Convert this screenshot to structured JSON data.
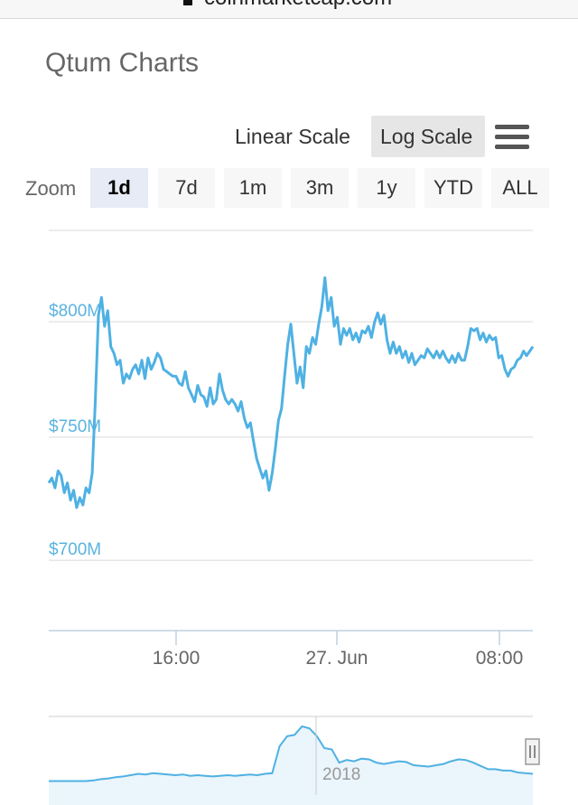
{
  "browser": {
    "url": "coinmarketcap.com"
  },
  "page": {
    "title": "Qtum Charts"
  },
  "controls": {
    "linear_label": "Linear Scale",
    "log_label": "Log Scale",
    "active_scale": "Log Scale",
    "zoom_label": "Zoom",
    "ranges": [
      "1d",
      "7d",
      "1m",
      "3m",
      "1y",
      "YTD",
      "ALL"
    ],
    "active_range": "1d"
  },
  "colors": {
    "line": "#4fb1e3",
    "navigator_fill": "#eaf5fc",
    "grid": "#e6e6e6",
    "active_button": "#e6ebf5"
  },
  "chart_data": {
    "type": "line",
    "title": "Qtum Charts",
    "y_scale": "log",
    "ylim": [
      673,
      842
    ],
    "y_ticks": [
      700,
      750,
      800
    ],
    "y_tick_labels": [
      "$700M",
      "$750M",
      "$800M"
    ],
    "x_ticks": [
      "16:00",
      "27. Jun",
      "08:00"
    ],
    "grid": true,
    "series": [
      {
        "values": [
          731,
          733,
          729,
          736,
          734,
          727,
          731,
          724,
          728,
          721,
          725,
          722,
          729,
          727,
          735,
          765,
          803,
          811,
          798,
          805,
          789,
          786,
          781,
          783,
          773,
          777,
          775,
          779,
          781,
          777,
          783,
          775,
          784,
          779,
          782,
          786,
          784,
          779,
          778,
          777,
          776,
          776,
          773,
          772,
          778,
          771,
          768,
          765,
          772,
          768,
          767,
          763,
          771,
          764,
          766,
          777,
          770,
          766,
          764,
          766,
          764,
          761,
          765,
          758,
          754,
          756,
          748,
          741,
          737,
          733,
          736,
          728,
          735,
          745,
          757,
          762,
          776,
          790,
          799,
          786,
          773,
          780,
          771,
          789,
          786,
          793,
          790,
          799,
          807,
          820,
          805,
          811,
          798,
          802,
          790,
          797,
          794,
          797,
          792,
          795,
          791,
          796,
          795,
          798,
          793,
          800,
          804,
          799,
          803,
          792,
          786,
          791,
          786,
          789,
          784,
          787,
          782,
          786,
          781,
          783,
          785,
          784,
          788,
          786,
          784,
          787,
          784,
          787,
          784,
          782,
          785,
          782,
          786,
          783,
          783,
          789,
          797,
          796,
          797,
          792,
          795,
          791,
          794,
          792,
          793,
          784,
          785,
          779,
          776,
          779,
          780,
          783,
          784,
          787,
          785,
          787,
          789
        ]
      }
    ],
    "navigator": {
      "label": "2018",
      "values": [
        0.02,
        0.02,
        0.02,
        0.02,
        0.02,
        0.02,
        0.03,
        0.05,
        0.06,
        0.08,
        0.09,
        0.11,
        0.13,
        0.12,
        0.14,
        0.13,
        0.12,
        0.11,
        0.12,
        0.1,
        0.11,
        0.1,
        0.09,
        0.1,
        0.11,
        0.1,
        0.11,
        0.12,
        0.11,
        0.13,
        0.14,
        0.55,
        0.7,
        0.72,
        0.85,
        0.82,
        0.7,
        0.52,
        0.5,
        0.3,
        0.34,
        0.32,
        0.36,
        0.35,
        0.3,
        0.28,
        0.3,
        0.32,
        0.31,
        0.26,
        0.25,
        0.24,
        0.26,
        0.28,
        0.32,
        0.35,
        0.34,
        0.3,
        0.25,
        0.2,
        0.2,
        0.18,
        0.18,
        0.15,
        0.14,
        0.13
      ]
    }
  }
}
